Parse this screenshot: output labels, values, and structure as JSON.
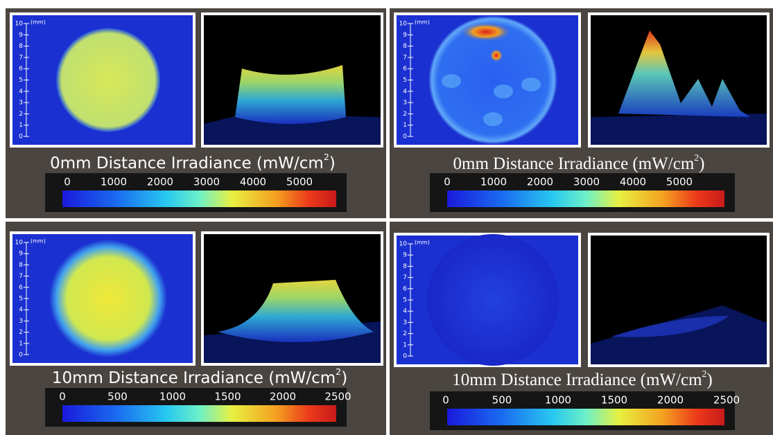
{
  "panels": [
    {
      "title": "0mm Distance Irradiance (mW/cm",
      "title_sup": "2",
      "title_end": ")",
      "colorbar_ticks": [
        0,
        1000,
        2000,
        3000,
        4000,
        5000
      ],
      "ruler_ticks": [
        0,
        1,
        2,
        3,
        4,
        5,
        6,
        7,
        8,
        9,
        10
      ],
      "ruler_unit": "(mm)"
    },
    {
      "title": "0mm Distance Irradiance (mW/cm",
      "title_sup": "2",
      "title_end": ")",
      "colorbar_ticks": [
        0,
        1000,
        2000,
        3000,
        4000,
        5000
      ],
      "ruler_ticks": [
        0,
        1,
        2,
        3,
        4,
        5,
        6,
        7,
        8,
        9,
        10
      ],
      "ruler_unit": "(mm)"
    },
    {
      "title": "10mm Distance Irradiance (mW/cm",
      "title_sup": "2",
      "title_end": ")",
      "colorbar_ticks": [
        0,
        500,
        1000,
        1500,
        2000,
        2500
      ],
      "ruler_ticks": [
        0,
        1,
        2,
        3,
        4,
        5,
        6,
        7,
        8,
        9,
        10
      ],
      "ruler_unit": "(mm)"
    },
    {
      "title": "10mm Distance Irradiance (mW/cm",
      "title_sup": "2",
      "title_end": ")",
      "colorbar_ticks": [
        0,
        500,
        1000,
        1500,
        2000,
        2500
      ],
      "ruler_ticks": [
        0,
        1,
        2,
        3,
        4,
        5,
        6,
        7,
        8,
        9,
        10
      ],
      "ruler_unit": "(mm)"
    }
  ]
}
